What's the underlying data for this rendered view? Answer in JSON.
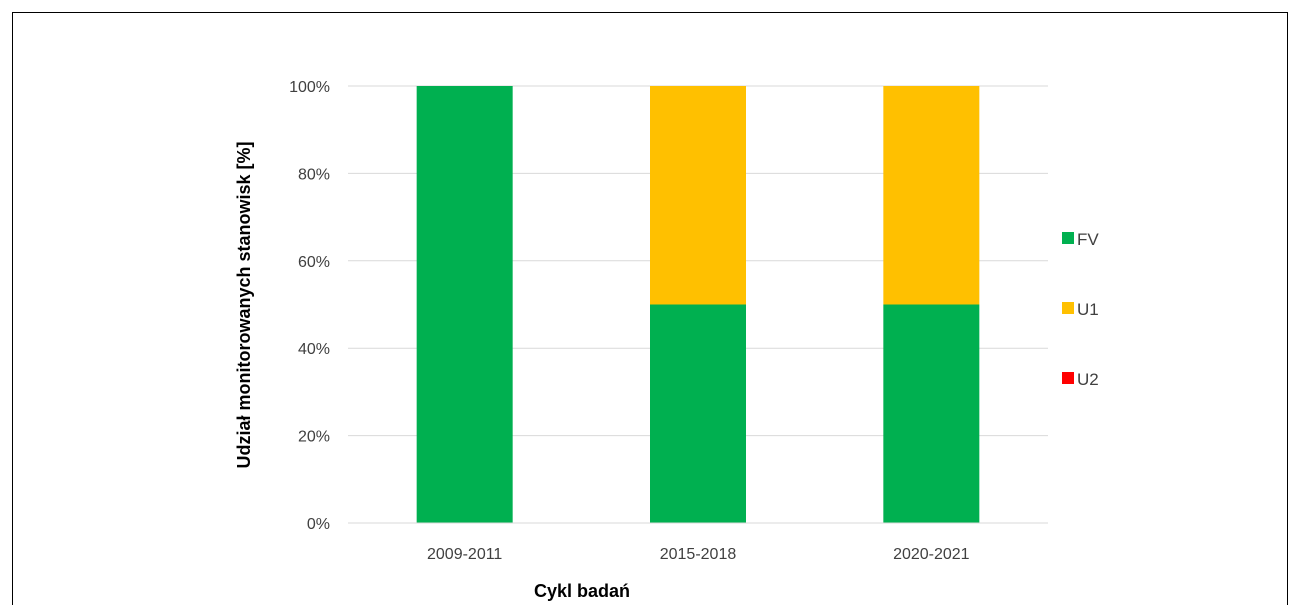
{
  "chart_data": {
    "type": "bar",
    "stacked": true,
    "categories": [
      "2009-2011",
      "2015-2018",
      "2020-2021"
    ],
    "series": [
      {
        "name": "FV",
        "color": "#00B050",
        "values": [
          100,
          50,
          50
        ]
      },
      {
        "name": "U1",
        "color": "#FFC000",
        "values": [
          0,
          50,
          50
        ]
      },
      {
        "name": "U2",
        "color": "#FF0000",
        "values": [
          0,
          0,
          0
        ]
      }
    ],
    "title": "",
    "xlabel": "Cykl badań",
    "ylabel": "Udział monitorowanych stanowisk [%]",
    "ylim": [
      0,
      100
    ],
    "yticks": [
      "0%",
      "20%",
      "40%",
      "60%",
      "80%",
      "100%"
    ],
    "grid": true,
    "legend_position": "right"
  }
}
